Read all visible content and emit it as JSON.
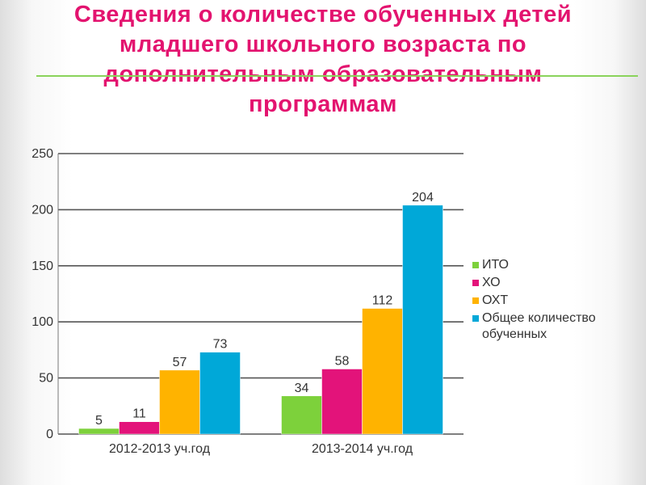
{
  "title": "Сведения о количестве обученных детей\nмладшего школьного возраста по\nдополнительным образовательным\nпрограммам",
  "colors": {
    "title": "#e3136f",
    "rule": "#8ad35b",
    "ИТО": "#7dd13b",
    "ХО": "#e3137a",
    "ОХТ": "#ffb300",
    "total": "#00a8d8"
  },
  "chart_data": {
    "type": "bar",
    "categories": [
      "2012-2013 уч.год",
      "2013-2014 уч.год"
    ],
    "series": [
      {
        "name": "ИТО",
        "values": [
          5,
          34
        ],
        "color": "#7dd13b"
      },
      {
        "name": "ХО",
        "values": [
          11,
          58
        ],
        "color": "#e3137a"
      },
      {
        "name": "ОХТ",
        "values": [
          57,
          112
        ],
        "color": "#ffb300"
      },
      {
        "name": "Общее количество обученных",
        "values": [
          73,
          204
        ],
        "color": "#00a8d8"
      }
    ],
    "ylim": [
      0,
      250
    ],
    "yticks": [
      0,
      50,
      100,
      150,
      200,
      250
    ],
    "grid": true,
    "legend": "right",
    "data_labels": true
  }
}
